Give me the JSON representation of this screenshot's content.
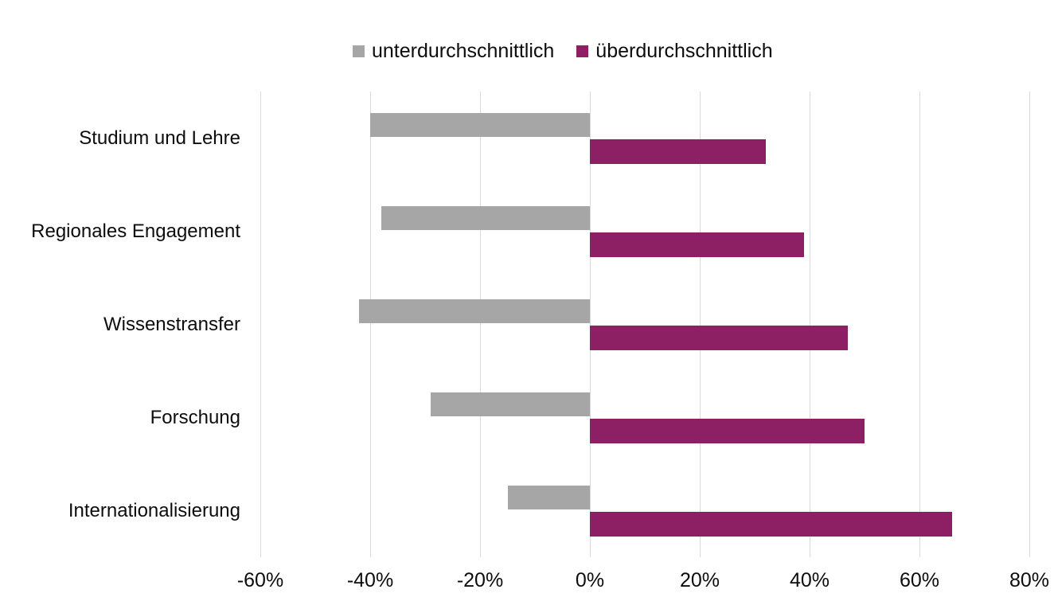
{
  "chart_data": {
    "type": "bar",
    "orientation": "horizontal",
    "title": "",
    "xlabel": "",
    "ylabel": "",
    "categories": [
      "Studium und Lehre",
      "Regionales Engagement",
      "Wissenstransfer",
      "Forschung",
      "Internationalisierung"
    ],
    "series": [
      {
        "name": "unterdurchschnittlich",
        "color": "#A6A6A6",
        "values": [
          -40,
          -38,
          -42,
          -29,
          -15
        ]
      },
      {
        "name": "überdurchschnittlich",
        "color": "#8D2065",
        "values": [
          32,
          39,
          47,
          50,
          66
        ]
      }
    ],
    "xlim": [
      -60,
      80
    ],
    "xticks": [
      -60,
      -40,
      -20,
      0,
      20,
      40,
      60,
      80
    ],
    "xtick_labels": [
      "-60%",
      "-40%",
      "-20%",
      "0%",
      "20%",
      "40%",
      "60%",
      "80%"
    ],
    "grid": true,
    "gridline_color": "#D9D9D9",
    "legend_position": "top",
    "background_color": "#FFFFFF",
    "text_color": "#0D0D0D"
  }
}
